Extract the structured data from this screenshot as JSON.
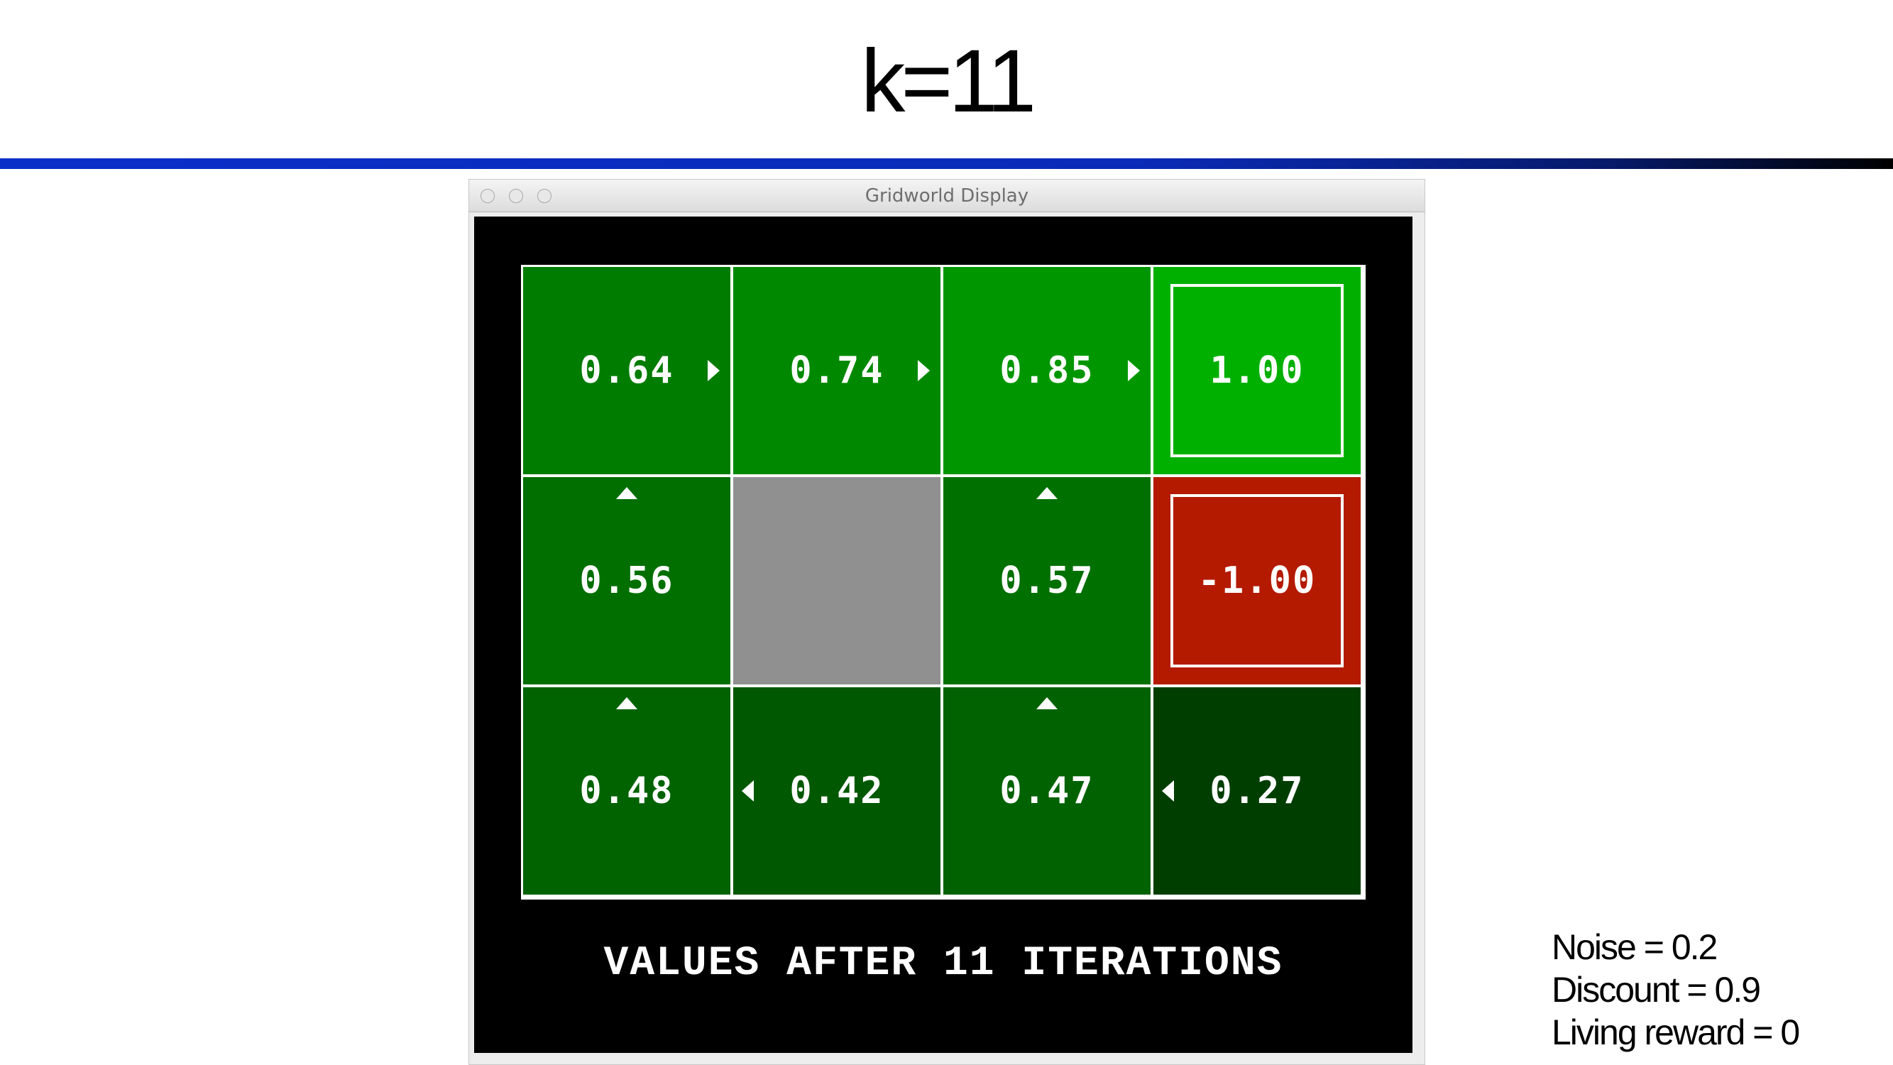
{
  "slide": {
    "title": "k=11",
    "params": [
      "Noise = 0.2",
      "Discount = 0.9",
      "Living reward = 0"
    ]
  },
  "window": {
    "title": "Gridworld Display"
  },
  "gridworld": {
    "caption": "VALUES AFTER 11 ITERATIONS",
    "cells": [
      {
        "row": 0,
        "col": 0,
        "value": "0.64",
        "policy": "right",
        "color": "#007c00"
      },
      {
        "row": 0,
        "col": 1,
        "value": "0.74",
        "policy": "right",
        "color": "#008900"
      },
      {
        "row": 0,
        "col": 2,
        "value": "0.85",
        "policy": "right",
        "color": "#009600"
      },
      {
        "row": 0,
        "col": 3,
        "value": "1.00",
        "policy": "none",
        "terminal": true,
        "color": "#00b000"
      },
      {
        "row": 1,
        "col": 0,
        "value": "0.56",
        "policy": "up",
        "color": "#006f00"
      },
      {
        "row": 1,
        "col": 1,
        "value": "",
        "policy": "none",
        "wall": true,
        "color": "#909090"
      },
      {
        "row": 1,
        "col": 2,
        "value": "0.57",
        "policy": "up",
        "color": "#007000"
      },
      {
        "row": 1,
        "col": 3,
        "value": "-1.00",
        "policy": "none",
        "terminal": true,
        "color": "#b41a00"
      },
      {
        "row": 2,
        "col": 0,
        "value": "0.48",
        "policy": "up",
        "color": "#006300"
      },
      {
        "row": 2,
        "col": 1,
        "value": "0.42",
        "policy": "left",
        "color": "#005800"
      },
      {
        "row": 2,
        "col": 2,
        "value": "0.47",
        "policy": "up",
        "color": "#006200"
      },
      {
        "row": 2,
        "col": 3,
        "value": "0.27",
        "policy": "left",
        "color": "#003e00"
      }
    ]
  }
}
